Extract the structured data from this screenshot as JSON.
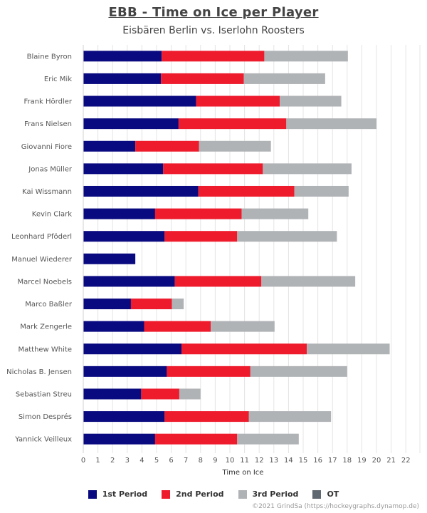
{
  "chart_data": {
    "type": "bar",
    "orientation": "horizontal",
    "stacked": true,
    "title": "EBB - Time on Ice per Player",
    "subtitle": "Eisbären Berlin vs. Iserlohn Roosters",
    "xlabel": "Time on Ice",
    "ylabel": "",
    "xlim": [
      0,
      23
    ],
    "xticks": [
      0,
      1,
      2,
      3,
      4,
      5,
      6,
      7,
      8,
      9,
      10,
      11,
      12,
      13,
      14,
      15,
      16,
      17,
      18,
      19,
      20,
      21,
      22
    ],
    "grid": true,
    "legend_position": "bottom",
    "categories": [
      "Blaine Byron",
      "Eric Mik",
      "Frank Hördler",
      "Frans Nielsen",
      "Giovanni Fiore",
      "Jonas Müller",
      "Kai Wissmann",
      "Kevin Clark",
      "Leonhard Pföderl",
      "Manuel Wiederer",
      "Marcel Noebels",
      "Marco Baßler",
      "Mark Zengerle",
      "Matthew White",
      "Nicholas B. Jensen",
      "Sebastian Streu",
      "Simon Després",
      "Yannick Veilleux"
    ],
    "series": [
      {
        "name": "1st Period",
        "color": "#0a0a80",
        "values": [
          5.35,
          5.3,
          7.7,
          6.5,
          3.55,
          5.45,
          7.85,
          4.9,
          5.55,
          3.55,
          6.25,
          3.25,
          4.15,
          6.7,
          5.7,
          3.95,
          5.55,
          4.9
        ]
      },
      {
        "name": "2nd Period",
        "color": "#ee1b2d",
        "values": [
          7.0,
          5.65,
          5.7,
          7.35,
          4.35,
          6.8,
          6.55,
          5.9,
          4.95,
          0,
          5.9,
          2.8,
          4.55,
          8.55,
          5.7,
          2.6,
          5.75,
          5.6
        ]
      },
      {
        "name": "3rd Period",
        "color": "#b0b3b6",
        "values": [
          5.7,
          5.55,
          4.2,
          6.15,
          4.9,
          6.05,
          3.7,
          4.55,
          6.8,
          0,
          6.4,
          0.8,
          4.35,
          5.65,
          6.6,
          1.45,
          5.6,
          4.2
        ]
      },
      {
        "name": "OT",
        "color": "#5f6770",
        "values": [
          0,
          0,
          0,
          0,
          0,
          0,
          0,
          0,
          0,
          0,
          0,
          0,
          0,
          0,
          0,
          0,
          0,
          0
        ]
      }
    ]
  },
  "credit": "©2021 GrindSa (https://hockeygraphs.dynamop.de)"
}
